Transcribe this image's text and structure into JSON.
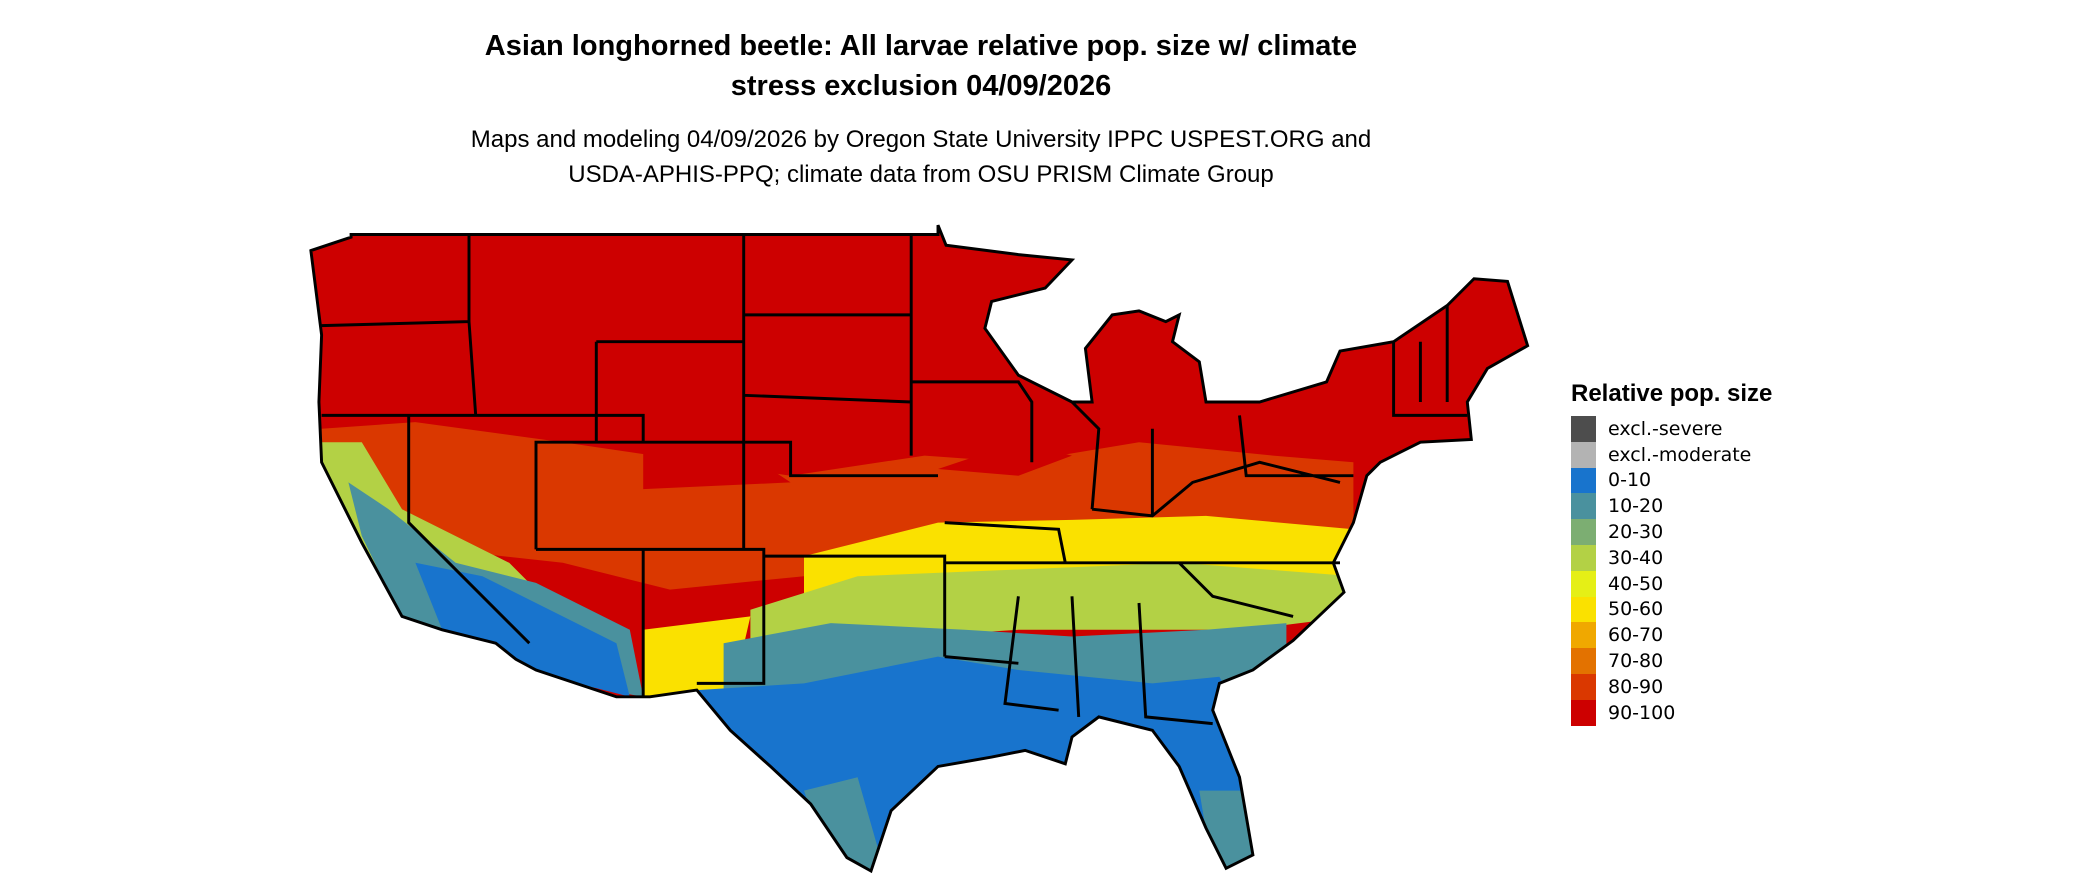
{
  "title": {
    "line1": "Asian longhorned beetle: All larvae relative pop. size w/ climate",
    "line2": "stress exclusion 04/09/2026"
  },
  "subtitle": {
    "line1": "Maps and modeling 04/09/2026 by Oregon State University IPPC USPEST.ORG and",
    "line2": "USDA-APHIS-PPQ; climate data from OSU PRISM Climate Group"
  },
  "legend": {
    "title": "Relative pop. size",
    "items": [
      {
        "label": "excl.-severe",
        "color": "#4d4d4d"
      },
      {
        "label": "excl.-moderate",
        "color": "#b3b3b3"
      },
      {
        "label": "0-10",
        "color": "#1874cd"
      },
      {
        "label": "10-20",
        "color": "#4a919e"
      },
      {
        "label": "20-30",
        "color": "#7cae72"
      },
      {
        "label": "30-40",
        "color": "#b3d145"
      },
      {
        "label": "40-50",
        "color": "#e5ef16"
      },
      {
        "label": "50-60",
        "color": "#fae100"
      },
      {
        "label": "60-70",
        "color": "#f0a800"
      },
      {
        "label": "70-80",
        "color": "#e37200"
      },
      {
        "label": "80-90",
        "color": "#da3800"
      },
      {
        "label": "90-100",
        "color": "#cd0000"
      }
    ]
  }
}
